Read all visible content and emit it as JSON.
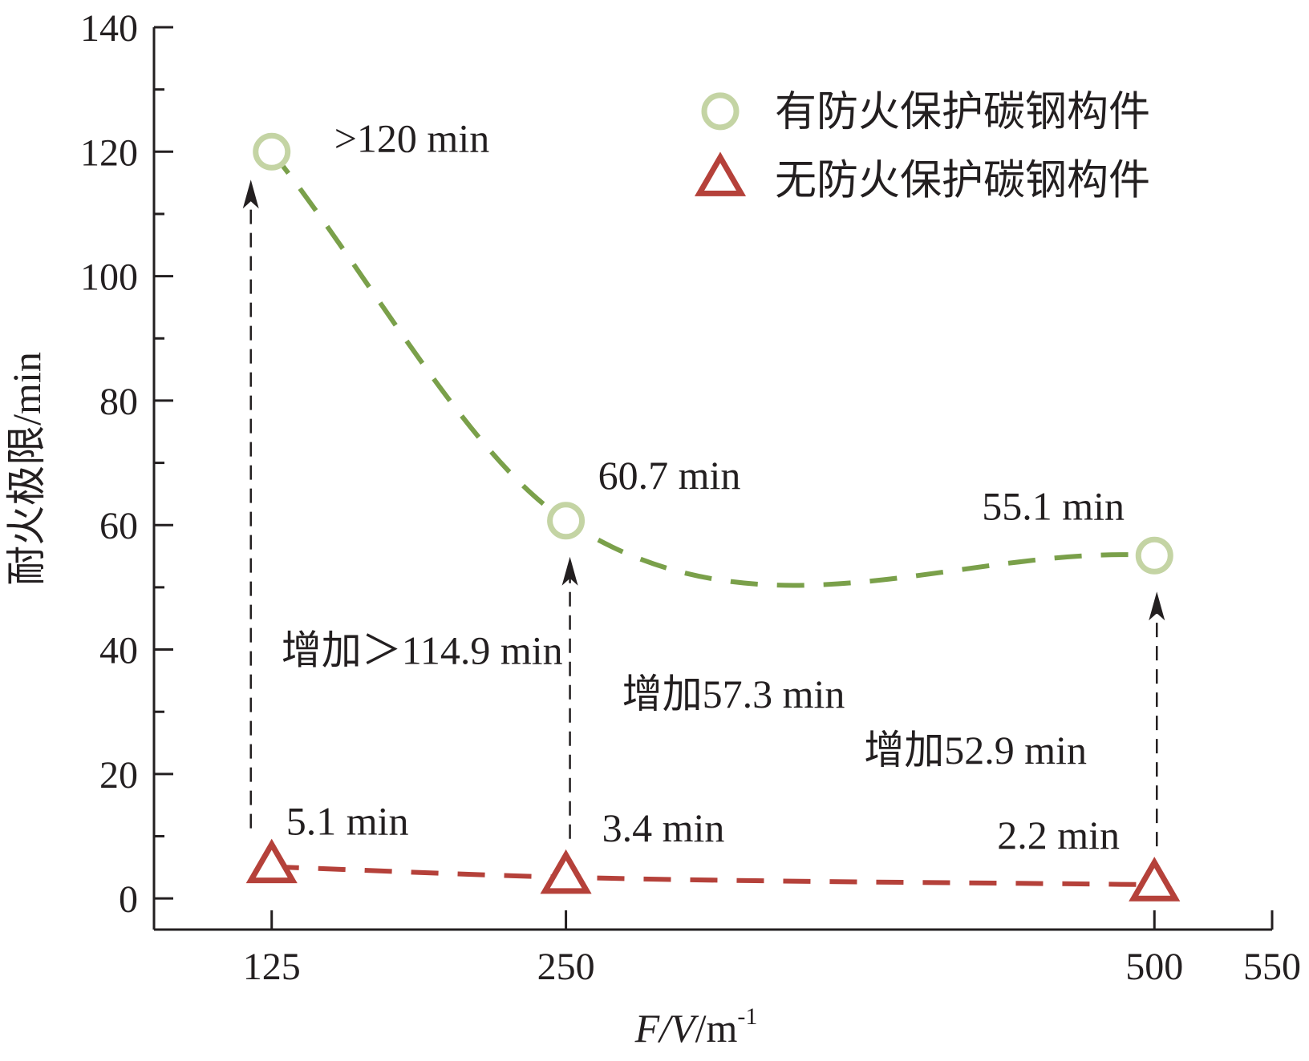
{
  "chart_data": {
    "type": "scatter",
    "xlabel": {
      "italic": "F/V",
      "unit": "/m",
      "superscript": "-1"
    },
    "ylabel": "耐火极限/min",
    "xlim": [
      75,
      550
    ],
    "ylim": [
      -5,
      140
    ],
    "x_ticks": [
      125,
      250,
      500,
      550
    ],
    "y_ticks": [
      0,
      20,
      40,
      60,
      80,
      100,
      120,
      140
    ],
    "y_minor_step": 10,
    "grid": false,
    "legend": {
      "position": "top-right"
    },
    "series": [
      {
        "name": "有防火保护碳钢构件",
        "marker": "circle",
        "marker_color": "#c4d4a4",
        "curve_color": "#7aa04a",
        "x": [
          125,
          250,
          500
        ],
        "y": [
          120,
          60.7,
          55.1
        ],
        "labels": [
          ">120 min",
          "60.7 min",
          "55.1 min"
        ]
      },
      {
        "name": "无防火保护碳钢构件",
        "marker": "triangle",
        "marker_color": "#b5413a",
        "curve_color": "#b5413a",
        "x": [
          125,
          250,
          500
        ],
        "y": [
          5.1,
          3.4,
          2.2
        ],
        "labels": [
          "5.1 min",
          "3.4 min",
          "2.2 min"
        ]
      }
    ],
    "increase_annotations": [
      {
        "x": 125,
        "from": 5.1,
        "to": 120,
        "label": "增加＞114.9 min"
      },
      {
        "x": 250,
        "from": 3.4,
        "to": 60.7,
        "label": "增加57.3 min"
      },
      {
        "x": 500,
        "from": 2.2,
        "to": 55.1,
        "label": "增加52.9 min"
      }
    ]
  }
}
